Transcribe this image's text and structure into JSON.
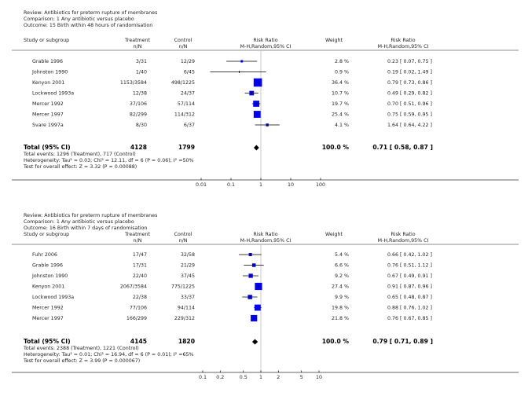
{
  "colors": {
    "box": "#0000ff",
    "line": "#000000",
    "refline": "#bbbbbb",
    "rule": "#666666"
  },
  "chart_data": [
    {
      "type": "forest",
      "review": "Review:  Antibiotics for preterm rupture of membranes",
      "comparison": "Comparison:  1 Any antibiotic versus placebo",
      "outcome": "Outcome:  15 Birth within 48 hours of randomisation",
      "headers": {
        "study": "Study or subgroup",
        "treatment": "Treatment",
        "treatment_sub": "n/N",
        "control": "Control",
        "control_sub": "n/N",
        "rr": "Risk Ratio",
        "rr_sub": "M-H,Random,95% CI",
        "weight": "Weight",
        "rr2": "Risk Ratio",
        "rr2_sub": "M-H,Random,95% CI"
      },
      "studies": [
        {
          "name": "Grable 1996",
          "treatment": "3/31",
          "control": "12/29",
          "rr": 0.23,
          "lo": 0.07,
          "hi": 0.75,
          "weight": 2.8,
          "weight_text": "2.8 %",
          "ci_text": "0.23 [ 0.07, 0.75 ]"
        },
        {
          "name": "Johnston 1990",
          "treatment": "1/40",
          "control": "6/45",
          "rr": 0.19,
          "lo": 0.02,
          "hi": 1.49,
          "weight": 0.9,
          "weight_text": "0.9 %",
          "ci_text": "0.19 [ 0.02, 1.49 ]"
        },
        {
          "name": "Kenyon 2001",
          "treatment": "1153/3584",
          "control": "498/1225",
          "rr": 0.79,
          "lo": 0.73,
          "hi": 0.86,
          "weight": 36.4,
          "weight_text": "36.4 %",
          "ci_text": "0.79 [ 0.73, 0.86 ]"
        },
        {
          "name": "Lockwood 1993a",
          "treatment": "12/38",
          "control": "24/37",
          "rr": 0.49,
          "lo": 0.29,
          "hi": 0.82,
          "weight": 10.7,
          "weight_text": "10.7 %",
          "ci_text": "0.49 [ 0.29, 0.82 ]"
        },
        {
          "name": "Mercer 1992",
          "treatment": "37/106",
          "control": "57/114",
          "rr": 0.7,
          "lo": 0.51,
          "hi": 0.96,
          "weight": 19.7,
          "weight_text": "19.7 %",
          "ci_text": "0.70 [ 0.51, 0.96 ]"
        },
        {
          "name": "Mercer 1997",
          "treatment": "82/299",
          "control": "114/312",
          "rr": 0.75,
          "lo": 0.59,
          "hi": 0.95,
          "weight": 25.4,
          "weight_text": "25.4 %",
          "ci_text": "0.75 [ 0.59, 0.95 ]"
        },
        {
          "name": "Svare 1997a",
          "treatment": "8/30",
          "control": "6/37",
          "rr": 1.64,
          "lo": 0.64,
          "hi": 4.22,
          "weight": 4.1,
          "weight_text": "4.1 %",
          "ci_text": "1.64 [ 0.64, 4.22 ]"
        }
      ],
      "total": {
        "label": "Total (95% CI)",
        "treatment": "4128",
        "control": "1799",
        "rr": 0.71,
        "lo": 0.58,
        "hi": 0.87,
        "weight_text": "100.0 %",
        "ci_text": "0.71 [ 0.58, 0.87 ]"
      },
      "notes": [
        "Total events: 1296 (Treatment), 717 (Control)",
        "Heterogeneity: Tau² = 0.03; Chi² = 12.11, df = 6 (P = 0.06); I² =50%",
        "Test for overall effect: Z = 3.32 (P = 0.00088)"
      ],
      "xscale": "log",
      "xlim": [
        0.01,
        100
      ],
      "ticks": [
        0.01,
        0.1,
        1,
        10,
        100
      ],
      "tick_labels": [
        "0.01",
        "0.1",
        "1",
        "10",
        "100"
      ]
    },
    {
      "type": "forest",
      "review": "Review:  Antibiotics for preterm rupture of membranes",
      "comparison": "Comparison:  1 Any antibiotic versus placebo",
      "outcome": "Outcome:  16 Birth within 7 days of randomisation",
      "headers": {
        "study": "Study or subgroup",
        "treatment": "Treatment",
        "treatment_sub": "n/N",
        "control": "Control",
        "control_sub": "n/N",
        "rr": "Risk Ratio",
        "rr_sub": "M-H,Random,95% CI",
        "weight": "Weight",
        "rr2": "Risk Ratio",
        "rr2_sub": "M-H,Random,95% CI"
      },
      "studies": [
        {
          "name": "Fuhr 2006",
          "treatment": "17/47",
          "control": "32/58",
          "rr": 0.66,
          "lo": 0.42,
          "hi": 1.02,
          "weight": 5.4,
          "weight_text": "5.4 %",
          "ci_text": "0.66 [ 0.42, 1.02 ]"
        },
        {
          "name": "Grable 1996",
          "treatment": "17/31",
          "control": "21/29",
          "rr": 0.76,
          "lo": 0.51,
          "hi": 1.12,
          "weight": 6.6,
          "weight_text": "6.6 %",
          "ci_text": "0.76 [ 0.51, 1.12 ]"
        },
        {
          "name": "Johnston 1990",
          "treatment": "22/40",
          "control": "37/45",
          "rr": 0.67,
          "lo": 0.49,
          "hi": 0.91,
          "weight": 9.2,
          "weight_text": "9.2 %",
          "ci_text": "0.67 [ 0.49, 0.91 ]"
        },
        {
          "name": "Kenyon 2001",
          "treatment": "2067/3584",
          "control": "775/1225",
          "rr": 0.91,
          "lo": 0.87,
          "hi": 0.96,
          "weight": 27.4,
          "weight_text": "27.4 %",
          "ci_text": "0.91 [ 0.87, 0.96 ]"
        },
        {
          "name": "Lockwood 1993a",
          "treatment": "22/38",
          "control": "33/37",
          "rr": 0.65,
          "lo": 0.48,
          "hi": 0.87,
          "weight": 9.9,
          "weight_text": "9.9 %",
          "ci_text": "0.65 [ 0.48, 0.87 ]"
        },
        {
          "name": "Mercer 1992",
          "treatment": "77/106",
          "control": "94/114",
          "rr": 0.88,
          "lo": 0.76,
          "hi": 1.02,
          "weight": 19.8,
          "weight_text": "19.8 %",
          "ci_text": "0.88 [ 0.76, 1.02 ]"
        },
        {
          "name": "Mercer 1997",
          "treatment": "166/299",
          "control": "229/312",
          "rr": 0.76,
          "lo": 0.67,
          "hi": 0.85,
          "weight": 21.8,
          "weight_text": "21.8 %",
          "ci_text": "0.76 [ 0.67, 0.85 ]"
        }
      ],
      "total": {
        "label": "Total (95% CI)",
        "treatment": "4145",
        "control": "1820",
        "rr": 0.79,
        "lo": 0.71,
        "hi": 0.89,
        "weight_text": "100.0 %",
        "ci_text": "0.79 [ 0.71, 0.89 ]"
      },
      "notes": [
        "Total events: 2388 (Treatment), 1221 (Control)",
        "Heterogeneity: Tau² = 0.01; Chi² = 16.94, df = 6 (P = 0.01); I² =65%",
        "Test for overall effect: Z = 3.99 (P = 0.000067)"
      ],
      "xscale": "log",
      "xlim": [
        0.1,
        10
      ],
      "ticks": [
        0.1,
        0.2,
        0.5,
        1,
        2,
        5,
        10
      ],
      "tick_labels": [
        "0.1",
        "0.2",
        "0.5",
        "1",
        "2",
        "5",
        "10"
      ]
    }
  ]
}
